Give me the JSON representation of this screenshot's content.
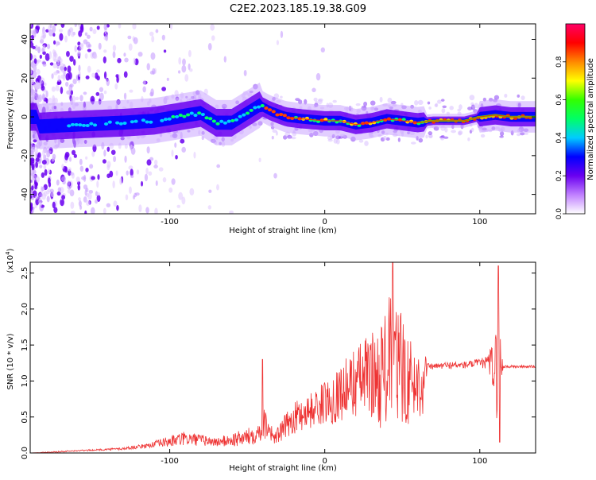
{
  "title": "C2E2.2023.185.19.38.G09",
  "chart_data": [
    {
      "type": "heatmap",
      "xlabel": "Height of straight line (km)",
      "ylabel": "Frequency (Hz)",
      "xlim": [
        -190,
        136
      ],
      "ylim": [
        -50,
        48
      ],
      "x_ticks": [
        -100,
        0,
        100
      ],
      "y_ticks": [
        -40,
        -20,
        0,
        20,
        40
      ],
      "colorbar": {
        "label": "Normalized spectral amplitude",
        "range": [
          0,
          1
        ],
        "ticks": [
          "0.0",
          "0.2",
          "0.4",
          "0.6",
          "0.8"
        ],
        "colors": [
          "#ffffff",
          "#c080ff",
          "#6a00f0",
          "#0000ff",
          "#00ccff",
          "#00ff66",
          "#33ff00",
          "#ffff00",
          "#ff8800",
          "#ff0000",
          "#ff0066"
        ]
      },
      "ridge": [
        {
          "x": -185,
          "f": -5
        },
        {
          "x": -160,
          "f": -4
        },
        {
          "x": -130,
          "f": -3
        },
        {
          "x": -110,
          "f": -2
        },
        {
          "x": -95,
          "f": 0
        },
        {
          "x": -80,
          "f": 2
        },
        {
          "x": -70,
          "f": -3
        },
        {
          "x": -60,
          "f": -3
        },
        {
          "x": -50,
          "f": 2
        },
        {
          "x": -42,
          "f": 6
        },
        {
          "x": -35,
          "f": 3
        },
        {
          "x": -25,
          "f": 0
        },
        {
          "x": -15,
          "f": -1
        },
        {
          "x": 0,
          "f": -2
        },
        {
          "x": 10,
          "f": -2
        },
        {
          "x": 20,
          "f": -4
        },
        {
          "x": 30,
          "f": -3
        },
        {
          "x": 40,
          "f": -1
        },
        {
          "x": 50,
          "f": -2
        },
        {
          "x": 60,
          "f": -3
        },
        {
          "x": 70,
          "f": -2
        },
        {
          "x": 90,
          "f": -2
        },
        {
          "x": 100,
          "f": 0
        },
        {
          "x": 110,
          "f": 1
        },
        {
          "x": 120,
          "f": 0
        },
        {
          "x": 136,
          "f": 0
        }
      ]
    },
    {
      "type": "line",
      "xlabel": "Height of straight line (km)",
      "ylabel": "SNR (10 * v/v)",
      "y_multiplier": "(x10",
      "y_multiplier_exp": "4",
      "y_multiplier_close": ")",
      "xlim": [
        -190,
        136
      ],
      "ylim": [
        0,
        2.65
      ],
      "x_ticks": [
        -100,
        0,
        100
      ],
      "y_ticks": [
        "0.0",
        "0.5",
        "1.0",
        "1.5",
        "2.0",
        "2.5"
      ],
      "line_color": "#ee3333",
      "series": [
        {
          "x": [
            -190,
            -170,
            -150,
            -130,
            -115,
            -100,
            -90,
            -80,
            -70,
            -60,
            -50,
            -42,
            -38,
            -35,
            -32,
            -28,
            -22,
            -15,
            -8,
            0,
            5,
            10,
            15,
            20,
            25,
            30,
            35,
            40,
            43,
            46,
            50,
            55,
            60,
            64,
            66,
            70,
            80,
            90,
            100,
            105,
            108,
            110,
            112,
            113,
            115,
            120,
            130,
            136
          ],
          "y": [
            0.0,
            0.02,
            0.04,
            0.06,
            0.1,
            0.16,
            0.2,
            0.18,
            0.15,
            0.18,
            0.22,
            0.3,
            0.45,
            0.3,
            0.2,
            0.3,
            0.45,
            0.55,
            0.6,
            0.7,
            0.75,
            0.85,
            0.9,
            1.0,
            1.05,
            1.1,
            1.05,
            1.2,
            1.25,
            1.2,
            1.15,
            1.0,
            0.95,
            1.05,
            1.2,
            1.2,
            1.22,
            1.22,
            1.25,
            1.25,
            1.25,
            1.1,
            1.0,
            1.25,
            1.2,
            1.2,
            1.2,
            1.2
          ],
          "amp": [
            0.0,
            0.01,
            0.01,
            0.02,
            0.03,
            0.08,
            0.1,
            0.08,
            0.06,
            0.1,
            0.12,
            0.15,
            0.25,
            0.12,
            0.1,
            0.15,
            0.2,
            0.25,
            0.25,
            0.3,
            0.35,
            0.4,
            0.45,
            0.5,
            0.55,
            0.6,
            0.7,
            0.9,
            1.0,
            0.95,
            0.8,
            0.6,
            0.5,
            0.5,
            0.05,
            0.04,
            0.05,
            0.05,
            0.06,
            0.1,
            0.3,
            0.6,
            0.9,
            0.5,
            0.03,
            0.02,
            0.02,
            0.02
          ]
        }
      ],
      "spikes": [
        {
          "x": -40,
          "y": 1.3
        },
        {
          "x": 44,
          "y": 2.65
        },
        {
          "x": 112,
          "y": 2.6
        },
        {
          "x": 113,
          "y": 0.15
        }
      ]
    }
  ]
}
